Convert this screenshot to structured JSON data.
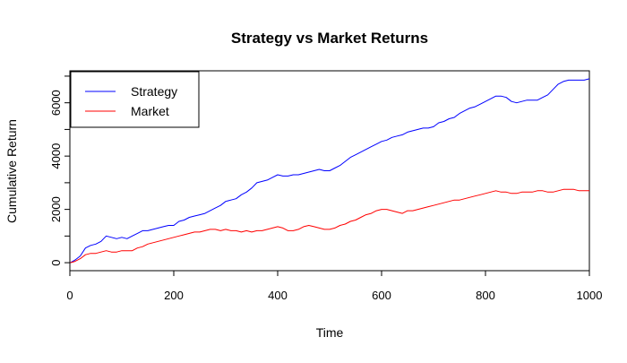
{
  "chart_data": {
    "type": "line",
    "title": "Strategy vs Market Returns",
    "xlabel": "Time",
    "ylabel": "Cumulative Return",
    "xlim": [
      0,
      1000
    ],
    "ylim": [
      -300,
      7200
    ],
    "x_ticks": [
      0,
      200,
      400,
      600,
      800,
      1000
    ],
    "y_ticks": [
      0,
      2000,
      4000,
      6000
    ],
    "y_minor_ticks": [
      1000,
      3000,
      5000,
      7000
    ],
    "grid": false,
    "legend_position": "top-left",
    "series": [
      {
        "name": "Strategy",
        "color": "#0000ff",
        "x": [
          1,
          10,
          20,
          30,
          40,
          50,
          60,
          70,
          80,
          90,
          100,
          110,
          120,
          130,
          140,
          150,
          160,
          170,
          180,
          190,
          200,
          210,
          220,
          230,
          240,
          250,
          260,
          270,
          280,
          290,
          300,
          310,
          320,
          330,
          340,
          350,
          360,
          370,
          380,
          390,
          400,
          410,
          420,
          430,
          440,
          450,
          460,
          470,
          480,
          490,
          500,
          510,
          520,
          530,
          540,
          550,
          560,
          570,
          580,
          590,
          600,
          610,
          620,
          630,
          640,
          650,
          660,
          670,
          680,
          690,
          700,
          710,
          720,
          730,
          740,
          750,
          760,
          770,
          780,
          790,
          800,
          810,
          820,
          830,
          840,
          850,
          860,
          870,
          880,
          890,
          900,
          910,
          920,
          930,
          940,
          950,
          960,
          970,
          980,
          990,
          1000
        ],
        "y": [
          0,
          100,
          250,
          550,
          650,
          700,
          800,
          1000,
          950,
          900,
          950,
          900,
          1000,
          1100,
          1200,
          1200,
          1250,
          1300,
          1350,
          1400,
          1400,
          1550,
          1600,
          1700,
          1750,
          1800,
          1850,
          1950,
          2050,
          2150,
          2300,
          2350,
          2400,
          2550,
          2650,
          2800,
          3000,
          3050,
          3100,
          3200,
          3300,
          3250,
          3250,
          3300,
          3300,
          3350,
          3400,
          3450,
          3500,
          3450,
          3450,
          3550,
          3650,
          3800,
          3950,
          4050,
          4150,
          4250,
          4350,
          4450,
          4550,
          4600,
          4700,
          4750,
          4800,
          4900,
          4950,
          5000,
          5050,
          5050,
          5100,
          5250,
          5300,
          5400,
          5450,
          5600,
          5700,
          5800,
          5850,
          5950,
          6050,
          6150,
          6250,
          6250,
          6200,
          6050,
          6000,
          6050,
          6100,
          6100,
          6100,
          6200,
          6300,
          6500,
          6700,
          6800,
          6850,
          6850,
          6850,
          6850,
          6900
        ]
      },
      {
        "name": "Market",
        "color": "#ff0000",
        "x": [
          1,
          10,
          20,
          30,
          40,
          50,
          60,
          70,
          80,
          90,
          100,
          110,
          120,
          130,
          140,
          150,
          160,
          170,
          180,
          190,
          200,
          210,
          220,
          230,
          240,
          250,
          260,
          270,
          280,
          290,
          300,
          310,
          320,
          330,
          340,
          350,
          360,
          370,
          380,
          390,
          400,
          410,
          420,
          430,
          440,
          450,
          460,
          470,
          480,
          490,
          500,
          510,
          520,
          530,
          540,
          550,
          560,
          570,
          580,
          590,
          600,
          610,
          620,
          630,
          640,
          650,
          660,
          670,
          680,
          690,
          700,
          710,
          720,
          730,
          740,
          750,
          760,
          770,
          780,
          790,
          800,
          810,
          820,
          830,
          840,
          850,
          860,
          870,
          880,
          890,
          900,
          910,
          920,
          930,
          940,
          950,
          960,
          970,
          980,
          990,
          1000
        ],
        "y": [
          0,
          50,
          150,
          300,
          350,
          350,
          400,
          450,
          400,
          400,
          450,
          450,
          450,
          550,
          600,
          700,
          750,
          800,
          850,
          900,
          950,
          1000,
          1050,
          1100,
          1150,
          1150,
          1200,
          1250,
          1250,
          1200,
          1250,
          1200,
          1200,
          1150,
          1200,
          1150,
          1200,
          1200,
          1250,
          1300,
          1350,
          1300,
          1200,
          1200,
          1250,
          1350,
          1400,
          1350,
          1300,
          1250,
          1250,
          1300,
          1400,
          1450,
          1550,
          1600,
          1700,
          1800,
          1850,
          1950,
          2000,
          2000,
          1950,
          1900,
          1850,
          1950,
          1950,
          2000,
          2050,
          2100,
          2150,
          2200,
          2250,
          2300,
          2350,
          2350,
          2400,
          2450,
          2500,
          2550,
          2600,
          2650,
          2700,
          2650,
          2650,
          2600,
          2600,
          2650,
          2650,
          2650,
          2700,
          2700,
          2650,
          2650,
          2700,
          2750,
          2750,
          2750,
          2700,
          2700,
          2700
        ]
      }
    ]
  }
}
